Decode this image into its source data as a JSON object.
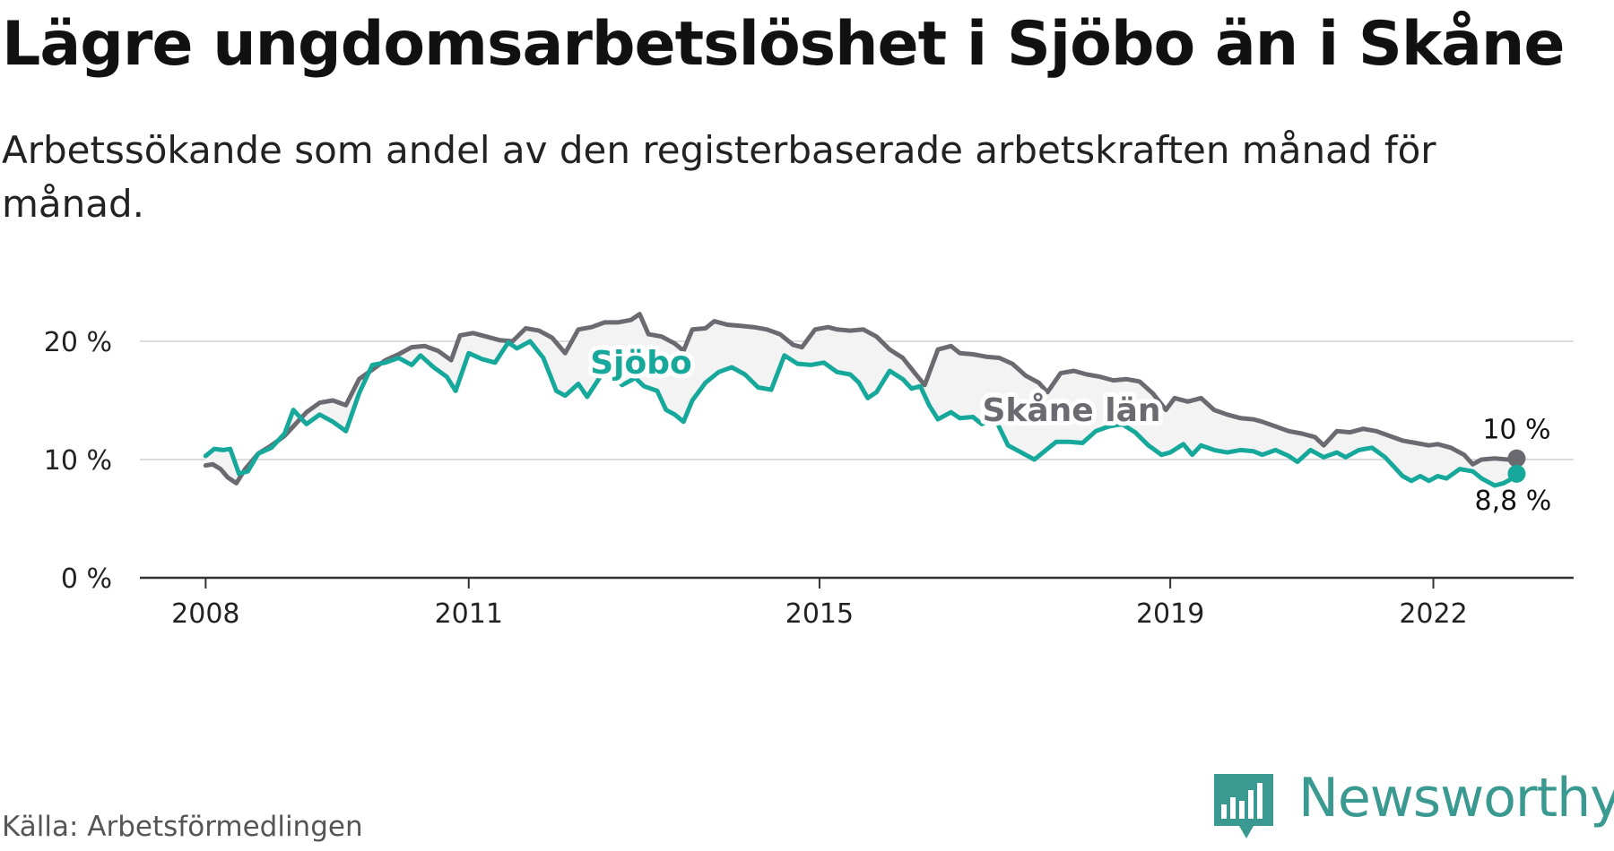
{
  "header": {
    "title": "Lägre ungdomsarbetslöshet i Sjöbo än i Skåne",
    "subtitle": "Arbetssökande som andel av den registerbaserade arbetskraften månad för månad."
  },
  "footer": {
    "source": "Källa: Arbetsförmedlingen",
    "brand": "Newsworthy"
  },
  "colors": {
    "sjobo": "#17a89c",
    "skane": "#6b6a70",
    "band": "#f3f3f3",
    "grid": "#dcdcdc",
    "axis": "#333333",
    "brand": "#3a9a92"
  },
  "chart_data": {
    "type": "line",
    "title": "Lägre ungdomsarbetslöshet i Sjöbo än i Skåne",
    "xlabel": "",
    "ylabel": "",
    "xlim": [
      2007.25,
      2023.6
    ],
    "ylim": [
      0,
      20
    ],
    "y_ticks": [
      0,
      10,
      20
    ],
    "y_tick_labels": [
      "0 %",
      "10 %",
      "20 %"
    ],
    "x_ticks": [
      2008,
      2011,
      2015,
      2019,
      2022
    ],
    "x_tick_labels": [
      "2008",
      "2011",
      "2015",
      "2019",
      "2022"
    ],
    "grid": true,
    "series_labels": {
      "sjobo": "Sjöbo",
      "skane": "Skåne län"
    },
    "end_labels": {
      "skane": "10 %",
      "sjobo": "8,8 %"
    },
    "series": [
      {
        "key": "skane",
        "name": "Skåne län",
        "points": [
          [
            2008.0,
            9.5
          ],
          [
            2008.08,
            9.6
          ],
          [
            2008.17,
            9.2
          ],
          [
            2008.25,
            8.5
          ],
          [
            2008.35,
            8.0
          ],
          [
            2008.45,
            9.2
          ],
          [
            2008.6,
            10.5
          ],
          [
            2008.75,
            11.2
          ],
          [
            2008.9,
            12.0
          ],
          [
            2009.0,
            12.8
          ],
          [
            2009.15,
            14.0
          ],
          [
            2009.3,
            14.8
          ],
          [
            2009.45,
            15.0
          ],
          [
            2009.6,
            14.6
          ],
          [
            2009.75,
            16.8
          ],
          [
            2009.9,
            17.6
          ],
          [
            2010.05,
            18.4
          ],
          [
            2010.2,
            18.9
          ],
          [
            2010.35,
            19.5
          ],
          [
            2010.5,
            19.6
          ],
          [
            2010.65,
            19.2
          ],
          [
            2010.8,
            18.4
          ],
          [
            2010.9,
            20.5
          ],
          [
            2011.05,
            20.7
          ],
          [
            2011.2,
            20.4
          ],
          [
            2011.35,
            20.1
          ],
          [
            2011.5,
            20.0
          ],
          [
            2011.65,
            21.1
          ],
          [
            2011.8,
            20.9
          ],
          [
            2011.95,
            20.3
          ],
          [
            2012.1,
            19.0
          ],
          [
            2012.25,
            21.0
          ],
          [
            2012.4,
            21.2
          ],
          [
            2012.55,
            21.6
          ],
          [
            2012.7,
            21.6
          ],
          [
            2012.85,
            21.8
          ],
          [
            2012.95,
            22.3
          ],
          [
            2013.05,
            20.6
          ],
          [
            2013.2,
            20.4
          ],
          [
            2013.35,
            19.8
          ],
          [
            2013.45,
            19.2
          ],
          [
            2013.55,
            21.0
          ],
          [
            2013.7,
            21.1
          ],
          [
            2013.8,
            21.7
          ],
          [
            2013.95,
            21.4
          ],
          [
            2014.1,
            21.3
          ],
          [
            2014.25,
            21.2
          ],
          [
            2014.4,
            21.0
          ],
          [
            2014.55,
            20.6
          ],
          [
            2014.7,
            19.7
          ],
          [
            2014.8,
            19.5
          ],
          [
            2014.95,
            21.0
          ],
          [
            2015.1,
            21.2
          ],
          [
            2015.2,
            21.0
          ],
          [
            2015.35,
            20.9
          ],
          [
            2015.5,
            21.0
          ],
          [
            2015.65,
            20.4
          ],
          [
            2015.8,
            19.3
          ],
          [
            2015.95,
            18.6
          ],
          [
            2016.1,
            17.2
          ],
          [
            2016.2,
            16.3
          ],
          [
            2016.35,
            19.3
          ],
          [
            2016.5,
            19.6
          ],
          [
            2016.6,
            19.0
          ],
          [
            2016.75,
            18.9
          ],
          [
            2016.9,
            18.7
          ],
          [
            2017.05,
            18.6
          ],
          [
            2017.2,
            18.1
          ],
          [
            2017.35,
            17.1
          ],
          [
            2017.5,
            16.5
          ],
          [
            2017.6,
            15.7
          ],
          [
            2017.75,
            17.3
          ],
          [
            2017.9,
            17.5
          ],
          [
            2018.05,
            17.2
          ],
          [
            2018.2,
            17.0
          ],
          [
            2018.35,
            16.7
          ],
          [
            2018.5,
            16.8
          ],
          [
            2018.65,
            16.6
          ],
          [
            2018.8,
            15.6
          ],
          [
            2018.95,
            14.2
          ],
          [
            2019.05,
            15.2
          ],
          [
            2019.2,
            14.9
          ],
          [
            2019.35,
            15.2
          ],
          [
            2019.5,
            14.2
          ],
          [
            2019.65,
            13.8
          ],
          [
            2019.8,
            13.5
          ],
          [
            2019.95,
            13.4
          ],
          [
            2020.05,
            13.2
          ],
          [
            2020.2,
            12.8
          ],
          [
            2020.35,
            12.4
          ],
          [
            2020.5,
            12.2
          ],
          [
            2020.65,
            11.9
          ],
          [
            2020.75,
            11.2
          ],
          [
            2020.9,
            12.4
          ],
          [
            2021.05,
            12.3
          ],
          [
            2021.2,
            12.6
          ],
          [
            2021.35,
            12.4
          ],
          [
            2021.5,
            12.0
          ],
          [
            2021.65,
            11.6
          ],
          [
            2021.8,
            11.4
          ],
          [
            2021.95,
            11.2
          ],
          [
            2022.05,
            11.3
          ],
          [
            2022.2,
            11.0
          ],
          [
            2022.35,
            10.4
          ],
          [
            2022.45,
            9.6
          ],
          [
            2022.55,
            10.0
          ],
          [
            2022.7,
            10.1
          ],
          [
            2022.85,
            10.0
          ],
          [
            2022.95,
            10.1
          ]
        ]
      },
      {
        "key": "sjobo",
        "name": "Sjöbo",
        "points": [
          [
            2008.0,
            10.3
          ],
          [
            2008.1,
            10.9
          ],
          [
            2008.2,
            10.8
          ],
          [
            2008.28,
            10.9
          ],
          [
            2008.38,
            8.8
          ],
          [
            2008.48,
            9.0
          ],
          [
            2008.6,
            10.5
          ],
          [
            2008.75,
            11.0
          ],
          [
            2008.9,
            12.2
          ],
          [
            2009.0,
            14.2
          ],
          [
            2009.15,
            13.0
          ],
          [
            2009.3,
            13.8
          ],
          [
            2009.45,
            13.2
          ],
          [
            2009.6,
            12.4
          ],
          [
            2009.75,
            15.6
          ],
          [
            2009.9,
            18.0
          ],
          [
            2010.05,
            18.2
          ],
          [
            2010.2,
            18.6
          ],
          [
            2010.35,
            18.0
          ],
          [
            2010.45,
            18.8
          ],
          [
            2010.6,
            17.8
          ],
          [
            2010.75,
            17.0
          ],
          [
            2010.85,
            15.8
          ],
          [
            2011.0,
            19.0
          ],
          [
            2011.15,
            18.5
          ],
          [
            2011.3,
            18.2
          ],
          [
            2011.45,
            19.9
          ],
          [
            2011.55,
            19.4
          ],
          [
            2011.7,
            20.0
          ],
          [
            2011.85,
            18.6
          ],
          [
            2012.0,
            15.8
          ],
          [
            2012.1,
            15.4
          ],
          [
            2012.25,
            16.4
          ],
          [
            2012.35,
            15.3
          ],
          [
            2012.5,
            17.0
          ],
          [
            2012.6,
            17.4
          ],
          [
            2012.75,
            16.3
          ],
          [
            2012.9,
            16.9
          ],
          [
            2013.0,
            16.2
          ],
          [
            2013.15,
            15.8
          ],
          [
            2013.25,
            14.2
          ],
          [
            2013.35,
            13.8
          ],
          [
            2013.45,
            13.2
          ],
          [
            2013.55,
            15.0
          ],
          [
            2013.7,
            16.5
          ],
          [
            2013.85,
            17.4
          ],
          [
            2014.0,
            17.8
          ],
          [
            2014.15,
            17.2
          ],
          [
            2014.3,
            16.1
          ],
          [
            2014.45,
            15.9
          ],
          [
            2014.6,
            18.8
          ],
          [
            2014.75,
            18.1
          ],
          [
            2014.9,
            18.0
          ],
          [
            2015.05,
            18.2
          ],
          [
            2015.2,
            17.4
          ],
          [
            2015.35,
            17.2
          ],
          [
            2015.45,
            16.5
          ],
          [
            2015.55,
            15.2
          ],
          [
            2015.65,
            15.7
          ],
          [
            2015.8,
            17.5
          ],
          [
            2015.95,
            16.8
          ],
          [
            2016.05,
            16.0
          ],
          [
            2016.15,
            16.2
          ],
          [
            2016.25,
            14.6
          ],
          [
            2016.35,
            13.4
          ],
          [
            2016.5,
            14.0
          ],
          [
            2016.6,
            13.5
          ],
          [
            2016.75,
            13.6
          ],
          [
            2016.85,
            13.0
          ],
          [
            2017.0,
            13.5
          ],
          [
            2017.15,
            11.2
          ],
          [
            2017.3,
            10.6
          ],
          [
            2017.45,
            10.0
          ],
          [
            2017.55,
            10.6
          ],
          [
            2017.7,
            11.5
          ],
          [
            2017.85,
            11.5
          ],
          [
            2018.0,
            11.4
          ],
          [
            2018.15,
            12.4
          ],
          [
            2018.3,
            12.8
          ],
          [
            2018.45,
            13.0
          ],
          [
            2018.6,
            12.3
          ],
          [
            2018.75,
            11.2
          ],
          [
            2018.9,
            10.4
          ],
          [
            2019.0,
            10.6
          ],
          [
            2019.15,
            11.3
          ],
          [
            2019.25,
            10.4
          ],
          [
            2019.35,
            11.2
          ],
          [
            2019.5,
            10.8
          ],
          [
            2019.65,
            10.6
          ],
          [
            2019.8,
            10.8
          ],
          [
            2019.95,
            10.7
          ],
          [
            2020.05,
            10.4
          ],
          [
            2020.2,
            10.8
          ],
          [
            2020.35,
            10.3
          ],
          [
            2020.45,
            9.8
          ],
          [
            2020.6,
            10.8
          ],
          [
            2020.75,
            10.2
          ],
          [
            2020.9,
            10.6
          ],
          [
            2021.0,
            10.2
          ],
          [
            2021.15,
            10.8
          ],
          [
            2021.3,
            11.0
          ],
          [
            2021.45,
            10.2
          ],
          [
            2021.55,
            9.4
          ],
          [
            2021.65,
            8.6
          ],
          [
            2021.75,
            8.2
          ],
          [
            2021.85,
            8.6
          ],
          [
            2021.95,
            8.2
          ],
          [
            2022.05,
            8.6
          ],
          [
            2022.15,
            8.4
          ],
          [
            2022.3,
            9.2
          ],
          [
            2022.45,
            9.0
          ],
          [
            2022.55,
            8.4
          ],
          [
            2022.7,
            7.8
          ],
          [
            2022.8,
            8.0
          ],
          [
            2022.9,
            8.4
          ],
          [
            2022.95,
            8.8
          ]
        ]
      }
    ]
  }
}
